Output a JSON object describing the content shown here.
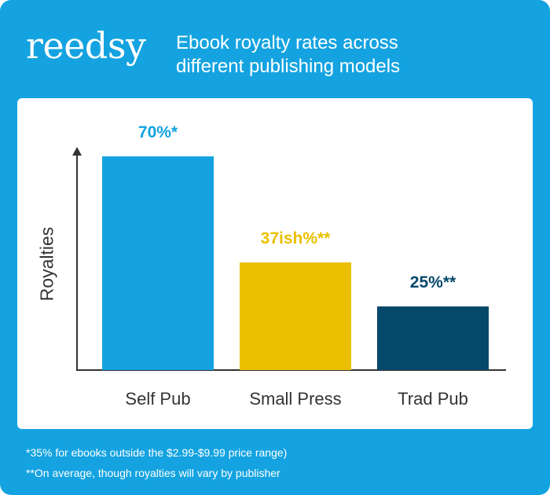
{
  "header": {
    "logo": "reedsy",
    "title_line1": "Ebook royalty rates across",
    "title_line2": "different publishing models"
  },
  "colors": {
    "background": "#14A3E0",
    "self_pub": "#14A3E0",
    "small_press": "#EBC000",
    "trad_pub": "#06486A",
    "axis": "#333333"
  },
  "chart_data": {
    "type": "bar",
    "title": "Ebook royalty rates across different publishing models",
    "xlabel": "",
    "ylabel": "Royalties",
    "categories": [
      "Self Pub",
      "Small Press",
      "Trad Pub"
    ],
    "values": [
      70,
      37,
      25
    ],
    "value_labels": [
      "70%*",
      "37ish%**",
      "25%**"
    ],
    "ylim": [
      0,
      75
    ],
    "grid": false,
    "legend": "none",
    "annotations": [
      "*35% for ebooks outside the $2.99-$9.99 price range)",
      "**On average, though royalties will vary by publisher"
    ]
  },
  "footnotes": [
    "*35% for ebooks outside the $2.99-$9.99 price range)",
    "**On average, though royalties will vary by publisher"
  ]
}
